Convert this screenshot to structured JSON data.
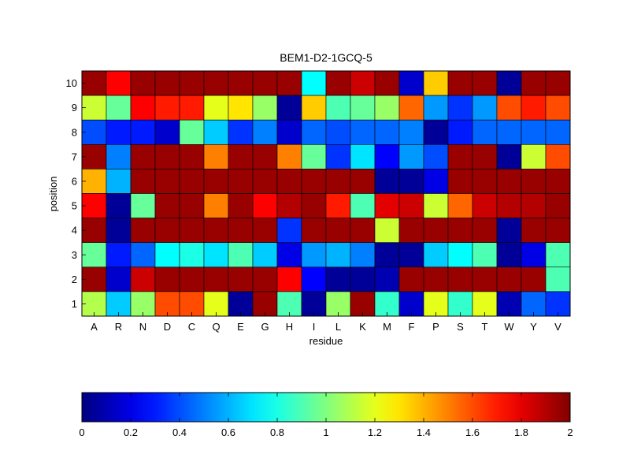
{
  "chart_data": {
    "type": "heatmap",
    "title": "BEM1-D2-1GCQ-5",
    "xlabel": "residue",
    "ylabel": "position",
    "x_categories": [
      "A",
      "R",
      "N",
      "D",
      "C",
      "Q",
      "E",
      "G",
      "H",
      "I",
      "L",
      "K",
      "M",
      "F",
      "P",
      "S",
      "T",
      "W",
      "Y",
      "V"
    ],
    "y_categories": [
      "1",
      "2",
      "3",
      "4",
      "5",
      "6",
      "7",
      "8",
      "9",
      "10"
    ],
    "color_range": [
      0,
      2
    ],
    "colormap": "jet",
    "colorbar_ticks": [
      "0",
      "0.2",
      "0.4",
      "0.6",
      "0.8",
      "1",
      "1.2",
      "1.4",
      "1.6",
      "1.8",
      "2"
    ],
    "rows": [
      {
        "position": "10",
        "values": [
          1.95,
          1.75,
          1.95,
          1.95,
          1.95,
          1.95,
          1.95,
          1.95,
          1.95,
          0.75,
          1.95,
          1.85,
          1.95,
          0.15,
          1.35,
          1.95,
          1.95,
          0.05,
          1.95,
          1.95
        ]
      },
      {
        "position": "9",
        "values": [
          1.15,
          0.95,
          1.75,
          1.7,
          1.7,
          1.2,
          1.3,
          1.05,
          0.05,
          1.35,
          0.9,
          0.95,
          1.05,
          1.55,
          0.55,
          0.35,
          0.55,
          1.6,
          1.7,
          1.6
        ]
      },
      {
        "position": "8",
        "values": [
          0.4,
          0.3,
          0.3,
          0.15,
          0.95,
          0.65,
          0.35,
          0.5,
          0.15,
          0.45,
          0.4,
          0.45,
          0.45,
          0.5,
          0.05,
          0.3,
          0.45,
          0.45,
          0.45,
          0.45
        ]
      },
      {
        "position": "7",
        "values": [
          1.95,
          0.5,
          1.95,
          1.95,
          1.95,
          1.5,
          1.95,
          1.95,
          1.5,
          0.95,
          0.35,
          0.7,
          0.25,
          0.55,
          0.4,
          1.95,
          1.95,
          0.05,
          1.15,
          1.6
        ]
      },
      {
        "position": "6",
        "values": [
          1.4,
          0.6,
          1.95,
          1.95,
          1.95,
          1.95,
          1.95,
          1.95,
          1.95,
          1.95,
          1.95,
          1.95,
          0.05,
          0.05,
          0.2,
          1.95,
          1.95,
          1.95,
          1.95,
          1.95
        ]
      },
      {
        "position": "5",
        "values": [
          1.75,
          0.05,
          0.95,
          1.95,
          1.95,
          1.5,
          1.95,
          1.75,
          1.9,
          1.95,
          1.7,
          0.9,
          1.8,
          1.85,
          1.15,
          1.55,
          1.85,
          1.9,
          1.9,
          1.95
        ]
      },
      {
        "position": "4",
        "values": [
          1.95,
          0.05,
          1.95,
          1.95,
          1.95,
          1.95,
          1.95,
          1.95,
          0.35,
          1.95,
          1.95,
          1.95,
          1.15,
          1.95,
          1.95,
          1.95,
          1.95,
          0.05,
          1.95,
          1.95
        ]
      },
      {
        "position": "3",
        "values": [
          0.95,
          0.3,
          0.45,
          0.75,
          0.8,
          0.7,
          0.9,
          0.65,
          0.2,
          0.55,
          0.6,
          0.5,
          0.05,
          0.05,
          0.65,
          0.75,
          0.9,
          0.05,
          0.2,
          0.9
        ]
      },
      {
        "position": "2",
        "values": [
          1.95,
          0.15,
          1.85,
          1.95,
          1.95,
          1.95,
          1.95,
          1.95,
          1.75,
          0.25,
          0.05,
          0.05,
          0.1,
          1.95,
          1.95,
          1.95,
          1.95,
          1.95,
          1.95,
          0.9
        ]
      },
      {
        "position": "1",
        "values": [
          1.1,
          0.65,
          1.05,
          1.6,
          1.6,
          1.2,
          0.05,
          1.95,
          0.9,
          0.05,
          1.05,
          1.95,
          0.85,
          0.15,
          1.2,
          0.85,
          1.2,
          0.1,
          0.45,
          0.35
        ]
      }
    ]
  }
}
